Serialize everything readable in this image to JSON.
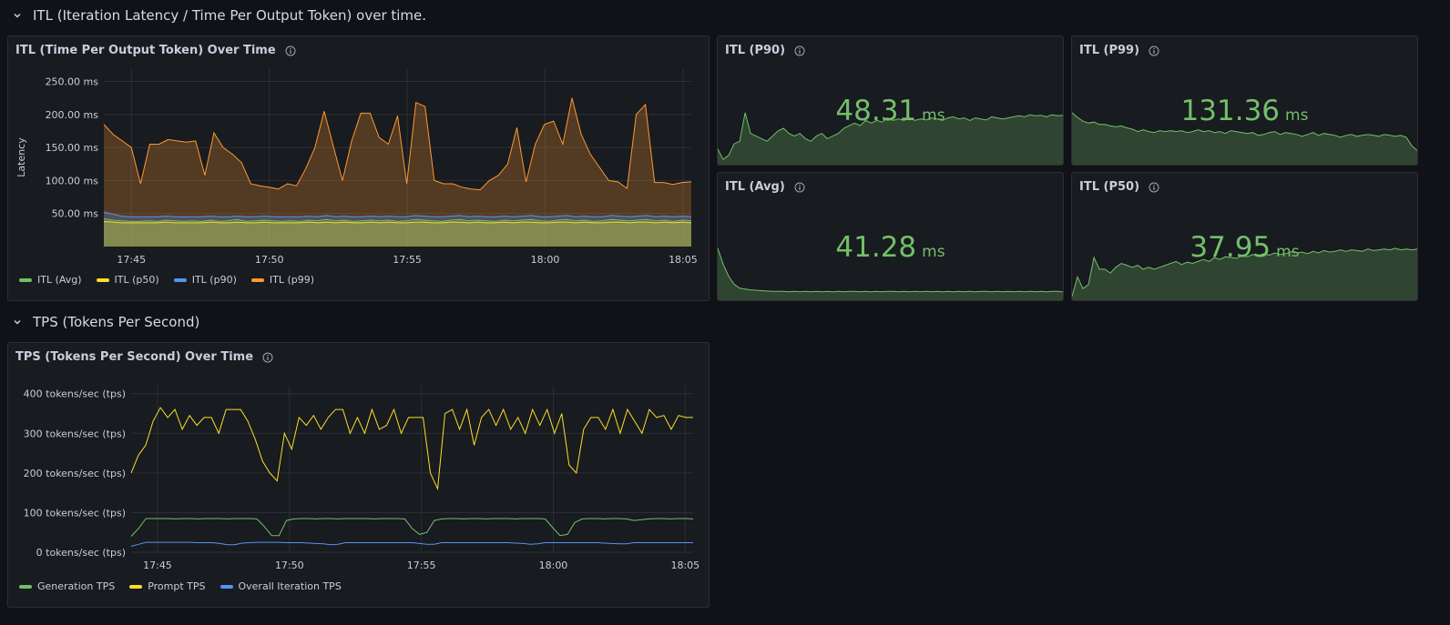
{
  "colors": {
    "green": "#73bf69",
    "yellow": "#fade2a",
    "blue": "#5794f2",
    "orange": "#ff9830"
  },
  "rows": [
    {
      "title": "ITL (Iteration Latency / Time Per Output Token) over time."
    },
    {
      "title": "TPS (Tokens Per Second)"
    }
  ],
  "itl_panel": {
    "title": "ITL (Time Per Output Token) Over Time",
    "legend": [
      "ITL (Avg)",
      "ITL (p50)",
      "ITL (p90)",
      "ITL (p99)"
    ]
  },
  "stats": [
    {
      "title": "ITL (P90)",
      "value": "48.31",
      "unit": "ms",
      "icon": "info-icon"
    },
    {
      "title": "ITL (P99)",
      "value": "131.36",
      "unit": "ms",
      "icon": "info-icon"
    },
    {
      "title": "ITL (Avg)",
      "value": "41.28",
      "unit": "ms",
      "icon": "info-icon"
    },
    {
      "title": "ITL (P50)",
      "value": "37.95",
      "unit": "ms",
      "icon": "info-icon"
    }
  ],
  "tps_panel": {
    "title": "TPS (Tokens Per Second) Over Time",
    "legend": [
      "Generation TPS",
      "Prompt TPS",
      "Overall Iteration TPS"
    ]
  },
  "chart_data": [
    {
      "type": "area",
      "title": "ITL (Time Per Output Token) Over Time",
      "ylabel": "Latency",
      "ylim": [
        0,
        270
      ],
      "xlim": [
        44,
        65.3
      ],
      "y_ticks": [
        50,
        100,
        150,
        200,
        250
      ],
      "y_tick_labels": [
        "50.00 ms",
        "100.00 ms",
        "150.00 ms",
        "200.00 ms",
        "250.00 ms"
      ],
      "x_ticks": [
        45,
        50,
        55,
        60,
        65
      ],
      "x_tick_labels": [
        "17:45",
        "17:50",
        "17:55",
        "18:00",
        "18:05"
      ],
      "grid": true,
      "legend_position": "bottom-left",
      "series": [
        {
          "name": "ITL (Avg)",
          "color": "#73bf69",
          "values": [
            42,
            40,
            39,
            38,
            38,
            39,
            38,
            40,
            39,
            38,
            39,
            38,
            40,
            38,
            39,
            41,
            38,
            39,
            40,
            39,
            38,
            39,
            38,
            40,
            39,
            41,
            39,
            40,
            38,
            39,
            40,
            39,
            40,
            38,
            39,
            41,
            40,
            39,
            38,
            40,
            41,
            39,
            40,
            39,
            38,
            40,
            39,
            40,
            41,
            39,
            38,
            40,
            41,
            39,
            40,
            38,
            39,
            41,
            40,
            39,
            40,
            41,
            39,
            40,
            38,
            40,
            39
          ]
        },
        {
          "name": "ITL (p50)",
          "color": "#fade2a",
          "values": [
            38,
            37,
            36,
            36,
            36,
            36,
            36,
            37,
            36,
            36,
            36,
            36,
            37,
            36,
            36,
            37,
            36,
            36,
            37,
            36,
            36,
            36,
            36,
            37,
            36,
            37,
            36,
            37,
            36,
            36,
            37,
            36,
            37,
            36,
            36,
            37,
            37,
            36,
            36,
            37,
            37,
            36,
            37,
            36,
            36,
            37,
            36,
            37,
            37,
            36,
            36,
            37,
            37,
            36,
            37,
            36,
            36,
            37,
            37,
            36,
            37,
            37,
            36,
            37,
            36,
            37,
            36
          ]
        },
        {
          "name": "ITL (p90)",
          "color": "#5794f2",
          "values": [
            52,
            49,
            46,
            45,
            45,
            45,
            45,
            46,
            45,
            45,
            45,
            45,
            46,
            45,
            45,
            46,
            45,
            45,
            46,
            45,
            45,
            45,
            45,
            46,
            45,
            47,
            45,
            46,
            45,
            45,
            46,
            45,
            46,
            45,
            45,
            47,
            46,
            45,
            45,
            46,
            47,
            45,
            46,
            45,
            45,
            46,
            45,
            46,
            47,
            45,
            45,
            46,
            47,
            45,
            46,
            45,
            45,
            47,
            46,
            45,
            46,
            47,
            45,
            46,
            45,
            46,
            45
          ]
        },
        {
          "name": "ITL (p99)",
          "color": "#ff9830",
          "values": [
            185,
            170,
            160,
            150,
            95,
            155,
            155,
            162,
            160,
            158,
            160,
            108,
            172,
            150,
            140,
            127,
            95,
            92,
            90,
            87,
            95,
            92,
            118,
            150,
            205,
            152,
            100,
            160,
            202,
            202,
            165,
            155,
            198,
            95,
            218,
            212,
            100,
            95,
            95,
            90,
            87,
            86,
            100,
            108,
            125,
            180,
            98,
            155,
            185,
            190,
            155,
            225,
            170,
            140,
            120,
            100,
            98,
            88,
            200,
            215,
            97,
            97,
            94,
            97,
            98
          ]
        }
      ]
    },
    {
      "type": "line",
      "title": "TPS (Tokens Per Second) Over Time",
      "ylim": [
        0,
        420
      ],
      "xlim": [
        44,
        65.3
      ],
      "y_ticks": [
        0,
        100,
        200,
        300,
        400
      ],
      "y_tick_labels": [
        "0 tokens/sec (tps)",
        "100 tokens/sec (tps)",
        "200 tokens/sec (tps)",
        "300 tokens/sec (tps)",
        "400 tokens/sec (tps)"
      ],
      "x_ticks": [
        45,
        50,
        55,
        60,
        65
      ],
      "x_tick_labels": [
        "17:45",
        "17:50",
        "17:55",
        "18:00",
        "18:05"
      ],
      "grid": true,
      "legend_position": "bottom-left",
      "series": [
        {
          "name": "Generation TPS",
          "color": "#73bf69",
          "values": [
            40,
            60,
            85,
            85,
            85,
            85,
            84,
            85,
            85,
            84,
            85,
            85,
            85,
            84,
            85,
            85,
            85,
            84,
            65,
            42,
            42,
            80,
            84,
            85,
            85,
            84,
            85,
            85,
            84,
            85,
            85,
            85,
            85,
            84,
            85,
            85,
            85,
            84,
            60,
            45,
            50,
            80,
            84,
            85,
            85,
            84,
            85,
            85,
            84,
            85,
            85,
            85,
            84,
            85,
            85,
            85,
            84,
            62,
            42,
            45,
            75,
            84,
            85,
            85,
            84,
            85,
            85,
            84,
            80,
            82,
            84,
            85,
            85,
            84,
            85,
            85,
            84
          ]
        },
        {
          "name": "Prompt TPS",
          "color": "#fade2a",
          "values": [
            200,
            245,
            270,
            330,
            365,
            340,
            360,
            310,
            345,
            320,
            340,
            340,
            300,
            360,
            360,
            360,
            330,
            285,
            230,
            200,
            180,
            300,
            260,
            340,
            320,
            345,
            310,
            340,
            360,
            360,
            300,
            340,
            300,
            360,
            310,
            320,
            360,
            300,
            340,
            340,
            340,
            200,
            160,
            350,
            360,
            310,
            360,
            270,
            340,
            360,
            320,
            360,
            310,
            340,
            300,
            360,
            320,
            360,
            300,
            350,
            220,
            200,
            310,
            340,
            340,
            310,
            360,
            300,
            360,
            330,
            300,
            360,
            340,
            345,
            310,
            345,
            340,
            340
          ]
        },
        {
          "name": "Overall Iteration TPS",
          "color": "#5794f2",
          "values": [
            15,
            20,
            25,
            25,
            25,
            25,
            25,
            25,
            25,
            24,
            24,
            24,
            22,
            19,
            19,
            23,
            24,
            25,
            25,
            25,
            25,
            24,
            24,
            24,
            23,
            22,
            21,
            19,
            20,
            24,
            24,
            24,
            24,
            24,
            24,
            24,
            24,
            24,
            24,
            22,
            20,
            20,
            24,
            24,
            24,
            24,
            24,
            24,
            24,
            24,
            24,
            24,
            23,
            22,
            20,
            21,
            24,
            24,
            24,
            24,
            24,
            24,
            24,
            24,
            23,
            22,
            21,
            21,
            24,
            24,
            24,
            24,
            24,
            24,
            24,
            24,
            24
          ]
        }
      ]
    }
  ],
  "sparks": [
    {
      "values": [
        30,
        10,
        18,
        40,
        45,
        100,
        60,
        55,
        50,
        45,
        55,
        65,
        70,
        60,
        55,
        60,
        50,
        45,
        55,
        60,
        50,
        55,
        60,
        70,
        75,
        80,
        75,
        85,
        80,
        85,
        82,
        90,
        85,
        88,
        85,
        90,
        85,
        88,
        86,
        90,
        88,
        85,
        90,
        92,
        88,
        90,
        85,
        90,
        88,
        86,
        92,
        90,
        88,
        90,
        92,
        94,
        92,
        96,
        94,
        95,
        92,
        96,
        94,
        95
      ]
    },
    {
      "values": [
        110,
        100,
        92,
        88,
        90,
        85,
        85,
        82,
        80,
        82,
        78,
        75,
        70,
        74,
        70,
        68,
        72,
        70,
        72,
        70,
        72,
        68,
        70,
        74,
        70,
        72,
        68,
        70,
        66,
        72,
        70,
        68,
        66,
        68,
        62,
        64,
        68,
        70,
        64,
        68,
        66,
        64,
        60,
        64,
        68,
        62,
        66,
        64,
        62,
        58,
        62,
        64,
        60,
        62,
        64,
        62,
        60,
        64,
        62,
        60,
        62,
        58,
        40,
        30
      ]
    },
    {
      "values": [
        130,
        90,
        60,
        40,
        30,
        28,
        26,
        25,
        24,
        23,
        22,
        22,
        22,
        21,
        22,
        21,
        22,
        21,
        22,
        21,
        22,
        21,
        22,
        21,
        22,
        22,
        21,
        22,
        21,
        22,
        21,
        22,
        22,
        21,
        22,
        21,
        22,
        21,
        22,
        21,
        22,
        21,
        22,
        21,
        22,
        21,
        22,
        21,
        22,
        22,
        21,
        22,
        21,
        22,
        21,
        22,
        21,
        22,
        21,
        22,
        21,
        22,
        22,
        21
      ]
    },
    {
      "values": [
        10,
        60,
        30,
        40,
        110,
        80,
        80,
        70,
        85,
        95,
        90,
        85,
        90,
        80,
        85,
        80,
        85,
        90,
        95,
        100,
        92,
        98,
        95,
        100,
        105,
        100,
        110,
        105,
        112,
        110,
        108,
        115,
        112,
        118,
        115,
        120,
        116,
        122,
        118,
        120,
        125,
        122,
        124,
        120,
        126,
        122,
        128,
        124,
        126,
        130,
        126,
        130,
        128,
        126,
        132,
        128,
        130,
        132,
        130,
        134,
        130,
        132,
        130,
        132
      ]
    }
  ]
}
